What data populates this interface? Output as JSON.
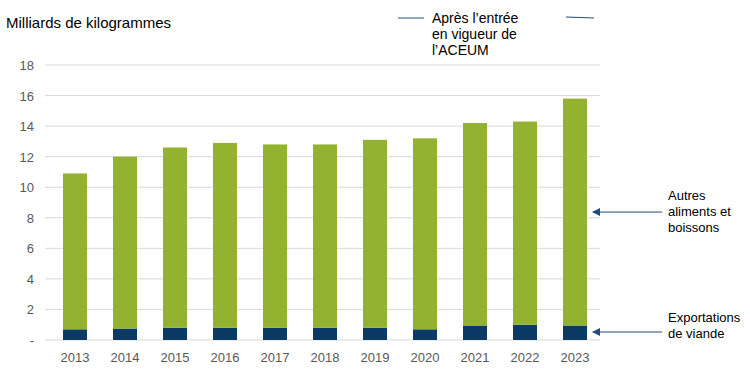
{
  "chart_data": {
    "type": "bar",
    "stacked": true,
    "y_label": "Milliards de kilogrammes",
    "annotation": "Après l’entrée en vigueur de l’ACEUM",
    "categories": [
      "2013",
      "2014",
      "2015",
      "2016",
      "2017",
      "2018",
      "2019",
      "2020",
      "2021",
      "2022",
      "2023"
    ],
    "series": [
      {
        "name": "Exportations de viande",
        "color": "#0b3a64",
        "values": [
          0.7,
          0.75,
          0.8,
          0.8,
          0.8,
          0.8,
          0.8,
          0.7,
          0.95,
          1.0,
          0.95
        ]
      },
      {
        "name": "Autres aliments et boissons",
        "color": "#93b22f",
        "values": [
          10.2,
          11.25,
          11.8,
          12.1,
          12.0,
          12.0,
          12.3,
          12.5,
          13.25,
          13.3,
          14.85
        ]
      }
    ],
    "ylim": [
      0,
      18
    ],
    "yticks": [
      {
        "value": 0,
        "label": "-"
      },
      2,
      4,
      6,
      8,
      10,
      12,
      14,
      16,
      18
    ],
    "grid": true,
    "legend": "right"
  }
}
